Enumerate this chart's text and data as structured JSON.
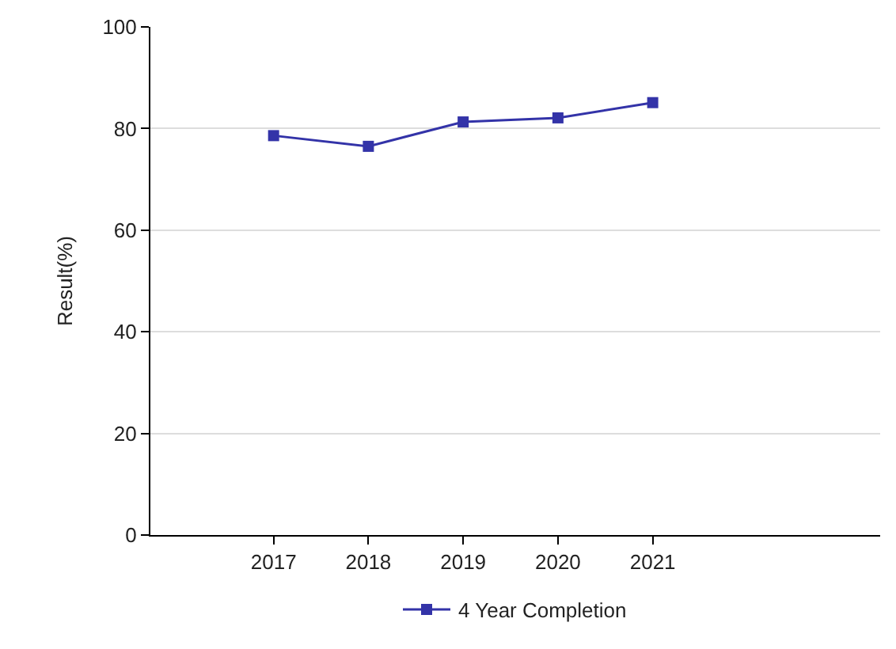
{
  "chart_data": {
    "type": "line",
    "ylabel": "Result(%)",
    "x": [
      2017,
      2018,
      2019,
      2020,
      2021
    ],
    "xlim": [
      2015.7,
      2023.4
    ],
    "xticks": [
      2017,
      2018,
      2019,
      2020,
      2021
    ],
    "ylim": [
      0,
      100
    ],
    "yticks": [
      0,
      20,
      40,
      60,
      80,
      100
    ],
    "series": [
      {
        "name": "4 Year Completion",
        "color": "#3333a8",
        "values": [
          78.6,
          76.5,
          81.3,
          82.1,
          85.1
        ]
      }
    ],
    "grid": "y",
    "legend": "bottom",
    "marker": "square",
    "line_style": "solid"
  }
}
